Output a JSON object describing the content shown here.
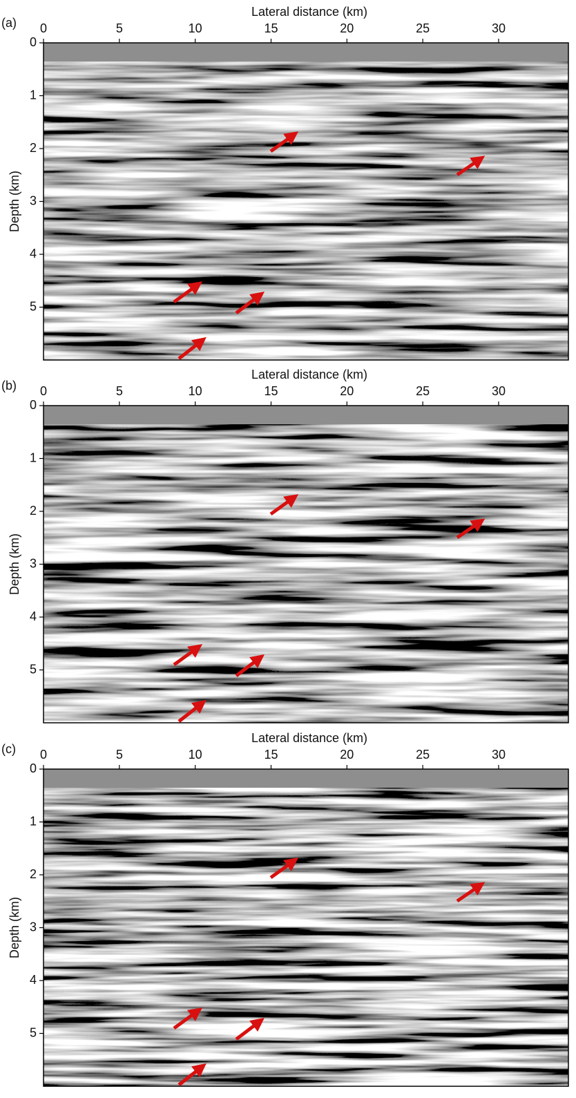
{
  "chart_data": [
    {
      "type": "seismic-section",
      "panel_label": "(a)",
      "xlabel": "Lateral distance (km)",
      "ylabel": "Depth (km)",
      "xlim": [
        0,
        34.6
      ],
      "xticks": [
        0,
        5,
        10,
        15,
        20,
        25,
        30
      ],
      "ylim": [
        0,
        6
      ],
      "yticks": [
        0,
        1,
        2,
        3,
        4,
        5
      ],
      "y_inverted": true
    },
    {
      "type": "seismic-section",
      "panel_label": "(b)",
      "xlabel": "Lateral distance (km)",
      "ylabel": "Depth (km)",
      "xlim": [
        0,
        34.6
      ],
      "xticks": [
        0,
        5,
        10,
        15,
        20,
        25,
        30
      ],
      "ylim": [
        0,
        6
      ],
      "yticks": [
        0,
        1,
        2,
        3,
        4,
        5
      ],
      "y_inverted": true
    },
    {
      "type": "seismic-section",
      "panel_label": "(c)",
      "xlabel": "Lateral distance (km)",
      "ylabel": "Depth (km)",
      "xlim": [
        0,
        34.6
      ],
      "xticks": [
        0,
        5,
        10,
        15,
        20,
        25,
        30
      ],
      "ylim": [
        0,
        6
      ],
      "yticks": [
        0,
        1,
        2,
        3,
        4,
        5
      ],
      "y_inverted": true
    }
  ]
}
